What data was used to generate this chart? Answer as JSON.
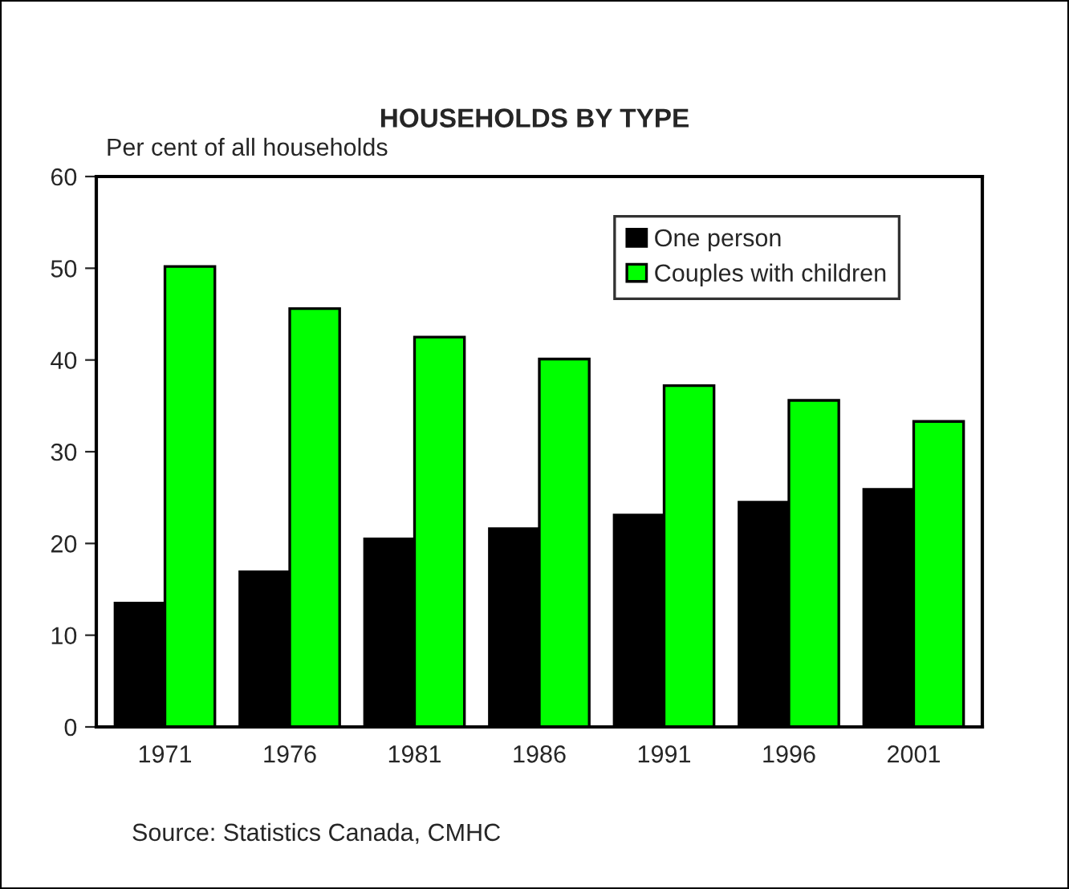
{
  "chart_data": {
    "type": "bar",
    "title": "HOUSEHOLDS BY TYPE",
    "ylabel": "Per cent of all households",
    "categories": [
      "1971",
      "1976",
      "1981",
      "1986",
      "1991",
      "1996",
      "2001"
    ],
    "series": [
      {
        "name": "One person",
        "color": "#000000",
        "values": [
          13.5,
          16.9,
          20.5,
          21.6,
          23.1,
          24.5,
          25.9
        ]
      },
      {
        "name": "Couples with children",
        "color": "#00ff00",
        "values": [
          50.2,
          45.6,
          42.5,
          40.1,
          37.2,
          35.6,
          33.3
        ]
      }
    ],
    "ylim": [
      0,
      60
    ],
    "yticks": [
      0,
      10,
      20,
      30,
      40,
      50,
      60
    ],
    "grid": false,
    "legend": "top right",
    "annotations": [
      "Source: Statistics Canada, CMHC"
    ]
  }
}
